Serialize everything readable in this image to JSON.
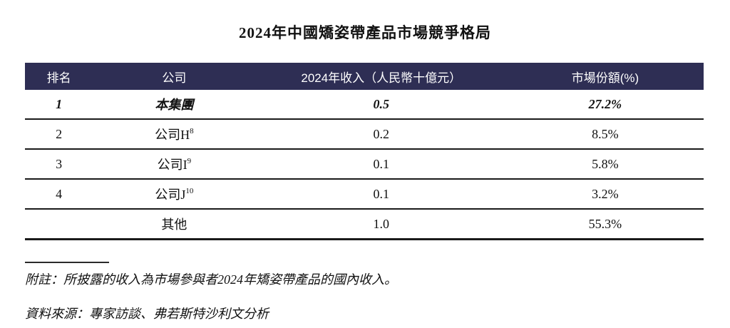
{
  "title": "2024年中國矯姿帶產品市場競爭格局",
  "table": {
    "headers": {
      "rank": "排名",
      "company": "公司",
      "revenue": "2024年收入（人民幣十億元）",
      "share": "市場份額(%)"
    },
    "rows": [
      {
        "rank": "1",
        "company": "本集團",
        "company_sup": "",
        "revenue": "0.5",
        "share": "27.2%"
      },
      {
        "rank": "2",
        "company": "公司H",
        "company_sup": "8",
        "revenue": "0.2",
        "share": "8.5%"
      },
      {
        "rank": "3",
        "company": "公司I",
        "company_sup": "9",
        "revenue": "0.1",
        "share": "5.8%"
      },
      {
        "rank": "4",
        "company": "公司J",
        "company_sup": "10",
        "revenue": "0.1",
        "share": "3.2%"
      },
      {
        "rank": "",
        "company": "其他",
        "company_sup": "",
        "revenue": "1.0",
        "share": "55.3%"
      }
    ]
  },
  "footnotes": {
    "note": "附註：所披露的收入為市場參與者2024年矯姿帶產品的國內收入。",
    "source": "資料來源：專家訪談、弗若斯特沙利文分析"
  },
  "colors": {
    "header_bg": "#2E2E54",
    "header_text": "#FFFFFF",
    "line": "#1A1A1A"
  }
}
